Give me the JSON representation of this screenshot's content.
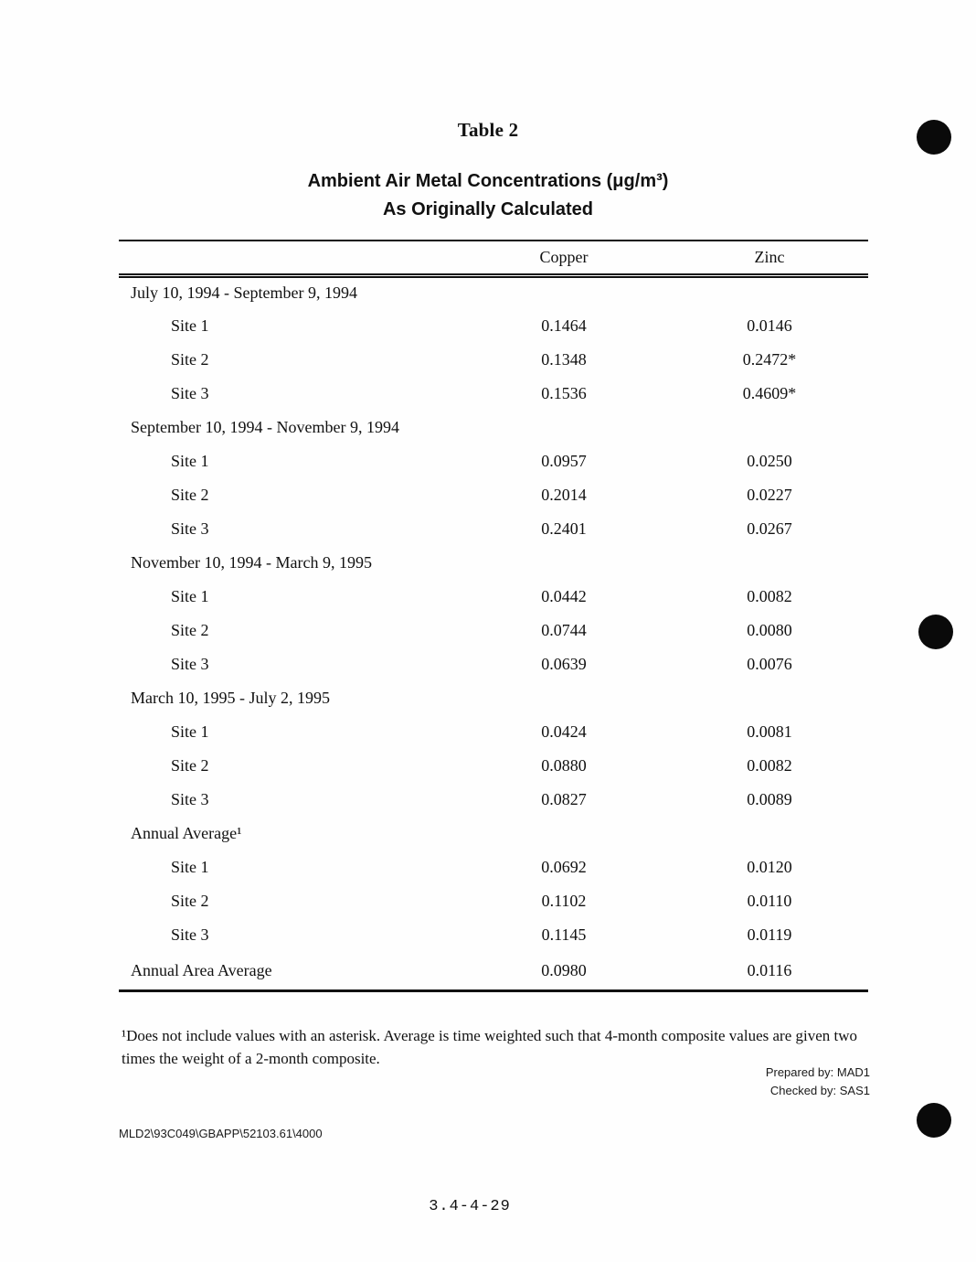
{
  "doc": {
    "title": "Table 2",
    "subtitle_line1": "Ambient Air Metal Concentrations (μg/m³)",
    "subtitle_line2": "As Originally Calculated",
    "footnote": "¹Does not include values with an asterisk.  Average is time weighted such that 4-month composite values are given two times the weight of a 2-month composite.",
    "prepared_by": "Prepared by:  MAD1",
    "checked_by": "Checked by:  SAS1",
    "file_ref": "MLD2\\93C049\\GBAPP\\52103.61\\4000",
    "page_number": "3.4-4-29"
  },
  "table": {
    "columns": {
      "copper": "Copper",
      "zinc": "Zinc"
    },
    "sections": [
      {
        "header": "July 10, 1994 - September 9, 1994",
        "rows": [
          {
            "label": "Site 1",
            "copper": "0.1464",
            "zinc": "0.0146"
          },
          {
            "label": "Site 2",
            "copper": "0.1348",
            "zinc": "0.2472*"
          },
          {
            "label": "Site 3",
            "copper": "0.1536",
            "zinc": "0.4609*"
          }
        ]
      },
      {
        "header": "September 10, 1994 - November 9, 1994",
        "rows": [
          {
            "label": "Site 1",
            "copper": "0.0957",
            "zinc": "0.0250"
          },
          {
            "label": "Site 2",
            "copper": "0.2014",
            "zinc": "0.0227"
          },
          {
            "label": "Site 3",
            "copper": "0.2401",
            "zinc": "0.0267"
          }
        ]
      },
      {
        "header": "November 10, 1994 - March 9, 1995",
        "rows": [
          {
            "label": "Site 1",
            "copper": "0.0442",
            "zinc": "0.0082"
          },
          {
            "label": "Site 2",
            "copper": "0.0744",
            "zinc": "0.0080"
          },
          {
            "label": "Site 3",
            "copper": "0.0639",
            "zinc": "0.0076"
          }
        ]
      },
      {
        "header": "March 10, 1995 - July 2, 1995",
        "rows": [
          {
            "label": "Site 1",
            "copper": "0.0424",
            "zinc": "0.0081"
          },
          {
            "label": "Site 2",
            "copper": "0.0880",
            "zinc": "0.0082"
          },
          {
            "label": "Site 3",
            "copper": "0.0827",
            "zinc": "0.0089"
          }
        ]
      },
      {
        "header": "Annual Average¹",
        "rows": [
          {
            "label": "Site 1",
            "copper": "0.0692",
            "zinc": "0.0120"
          },
          {
            "label": "Site 2",
            "copper": "0.1102",
            "zinc": "0.0110"
          },
          {
            "label": "Site 3",
            "copper": "0.1145",
            "zinc": "0.0119"
          }
        ]
      }
    ],
    "final_row": {
      "label": "Annual Area Average",
      "copper": "0.0980",
      "zinc": "0.0116"
    }
  }
}
